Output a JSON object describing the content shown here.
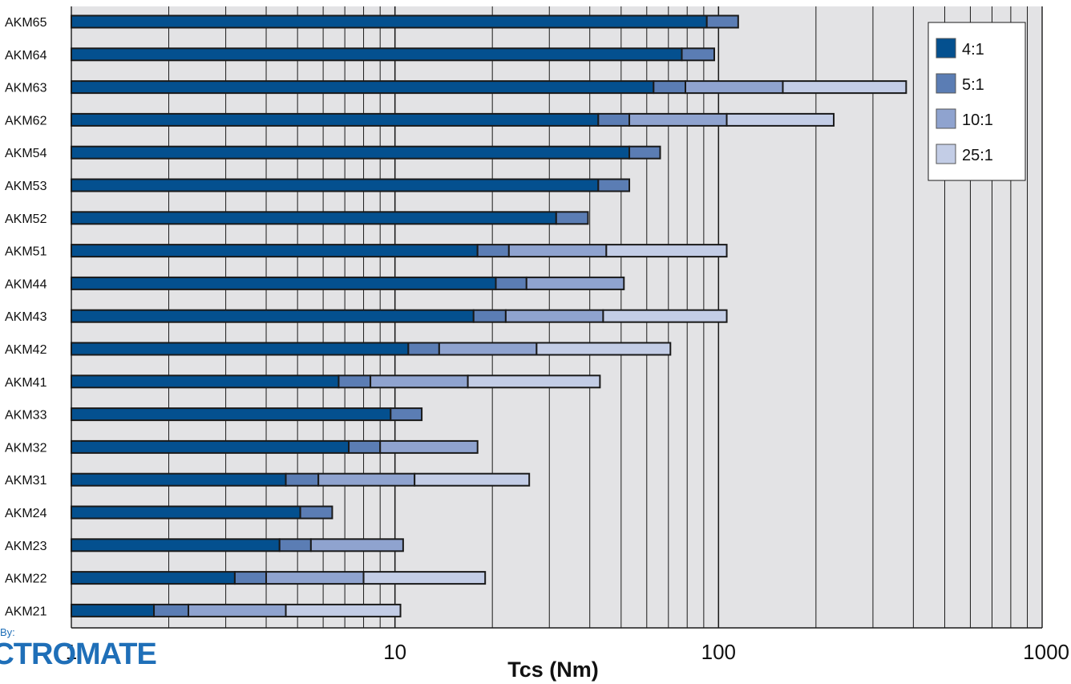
{
  "colors": {
    "plot_bg": "#e3e3e5",
    "grid": "#1a1a1a",
    "bar_outline": "#1a1a1a",
    "series": [
      "#04508f",
      "#5b7db4",
      "#8fa3cf",
      "#c3cde6"
    ],
    "brand": "#1f6fb8"
  },
  "brand": {
    "by": "By:",
    "name": "ECTROMATE"
  },
  "chart_data": {
    "type": "bar",
    "orientation": "horizontal",
    "stacking": "cumulative",
    "title": "",
    "xlabel": "Tcs (Nm)",
    "ylabel": "",
    "xscale": "log",
    "xlim": [
      1,
      1000
    ],
    "xticks": [
      "1",
      "10",
      "100",
      "1000"
    ],
    "grid": true,
    "legend_position": "top-right",
    "categories": [
      "AKM65",
      "AKM64",
      "AKM63",
      "AKM62",
      "AKM54",
      "AKM53",
      "AKM52",
      "AKM51",
      "AKM44",
      "AKM43",
      "AKM42",
      "AKM41",
      "AKM33",
      "AKM32",
      "AKM31",
      "AKM24",
      "AKM23",
      "AKM22",
      "AKM21"
    ],
    "series": [
      {
        "name": "4:1",
        "values": [
          92,
          77,
          63,
          42.5,
          53,
          42.5,
          31.5,
          18,
          20.5,
          17.5,
          11,
          6.7,
          9.7,
          7.2,
          4.6,
          5.1,
          4.4,
          3.2,
          1.8
        ]
      },
      {
        "name": "5:1",
        "values": [
          115,
          97,
          79,
          53,
          66,
          53,
          39.5,
          22.5,
          25.5,
          22,
          13.7,
          8.4,
          12.1,
          9,
          5.8,
          6.4,
          5.5,
          4,
          2.3
        ]
      },
      {
        "name": "10:1",
        "values": [
          null,
          null,
          158,
          106,
          null,
          null,
          null,
          45,
          51,
          44,
          27.4,
          16.8,
          null,
          18,
          11.5,
          null,
          10.6,
          8,
          4.6
        ]
      },
      {
        "name": "25:1",
        "values": [
          null,
          null,
          380,
          227,
          null,
          null,
          null,
          106,
          null,
          106,
          71,
          43,
          null,
          null,
          26,
          null,
          null,
          19,
          10.4
        ]
      }
    ]
  }
}
